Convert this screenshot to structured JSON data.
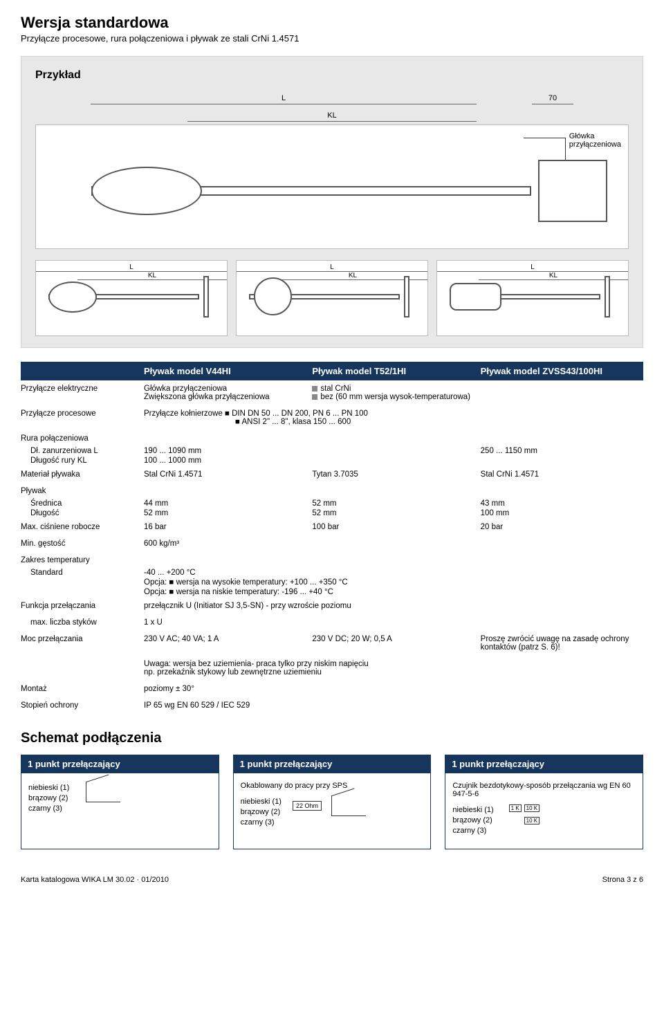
{
  "page": {
    "title": "Wersja standardowa",
    "subtitle": "Przyłącze procesowe, rura połączeniowa i pływak ze stali CrNi 1.4571",
    "footer_left": "Karta katalogowa WIKA LM 30.02 · 01/2010",
    "footer_right": "Strona 3 z 6",
    "schematic_heading": "Schemat podłączenia"
  },
  "diagram": {
    "example_label": "Przykład",
    "dim_L": "L",
    "dim_KL": "KL",
    "dim_70": "70",
    "callout": "Główka\nprzyłączeniowa"
  },
  "specs": {
    "header": {
      "blank": "",
      "c2": "Pływak model V44HI",
      "c3": "Pływak model T52/1HI",
      "c4": "Pływak model  ZVSS43/100HI"
    },
    "rows": [
      {
        "label": "Przyłącze elektryczne",
        "c2": "Główka przyłączeniowa",
        "c2b": "Zwiększona główka przyłączeniowa",
        "c3": "stal CrNi",
        "c3b": "bez (60 mm wersja wysok-temperaturowa)",
        "c4": "",
        "type": "twoLine"
      },
      {
        "label": "Przyłącze procesowe",
        "full": "Przyłącze kołnierzowe ■ DIN DN 50 ... DN 200, PN 6 ... PN 100",
        "full2": "■ ANSI 2\" ... 8\", klasa 150 ... 600",
        "type": "full"
      },
      {
        "label": "Rura połączeniowa",
        "sub": [
          {
            "l": "Dł. zanurzeniowa L",
            "c2": "190 ... 1090 mm",
            "c3": "",
            "c4": "250 ... 1150 mm"
          },
          {
            "l": "Długość rury KL",
            "c2": "100 ... 1000 mm",
            "c3": "",
            "c4": ""
          }
        ],
        "type": "group"
      },
      {
        "label": "Materiał pływaka",
        "c2": "Stal CrNi 1.4571",
        "c3": "Tytan 3.7035",
        "c4": "Stal CrNi 1.4571",
        "type": "three"
      },
      {
        "label": "Pływak",
        "sub": [
          {
            "l": "Średnica",
            "c2": "44 mm",
            "c3": "52 mm",
            "c4": "43 mm"
          },
          {
            "l": "Długość",
            "c2": "52 mm",
            "c3": "52 mm",
            "c4": "100 mm"
          }
        ],
        "type": "group2"
      },
      {
        "label": "Max. ciśniene robocze",
        "c2": "16 bar",
        "c3": "100 bar",
        "c4": "20 bar",
        "type": "three"
      },
      {
        "label": "Min. gęstość",
        "c2": "600 kg/m³",
        "type": "one"
      },
      {
        "label": "Zakres temperatury",
        "sub": [
          {
            "l": "Standard",
            "c2": "-40 ... +200 °C"
          },
          {
            "l": "",
            "c2": "Opcja:    ■ wersja na wysokie temperatury: +100 ... +350 °C"
          },
          {
            "l": "",
            "c2": "Opcja:    ■ wersja na niskie temperatury: -196 ... +40 °C"
          }
        ],
        "type": "groupFull"
      },
      {
        "label": "Funkcja przełączania",
        "c2": "przełącznik U (Initiator SJ 3,5-SN)  - przy wzroście poziomu",
        "type": "one"
      },
      {
        "label": "max. liczba styków",
        "c2": "1 x U",
        "type": "one",
        "indent": true
      },
      {
        "label": "Moc przełączania",
        "c2": "230 V AC;  40 VA; 1 A",
        "c3": "230 V DC; 20 W; 0,5 A",
        "c4": "Proszę zwrócić uwagę na zasadę ochrony kontaktów (patrz S. 6)!",
        "type": "three"
      },
      {
        "label": "",
        "c2": "Uwaga: wersja bez uziemienia- praca tylko przy niskim napięciu\nnp. przekaźnik stykowy lub zewnętrzne uziemieniu",
        "type": "note"
      },
      {
        "label": "Montaż",
        "c2": "poziomy ± 30°",
        "type": "one"
      },
      {
        "label": "Stopień ochrony",
        "c2": "IP 65  wg EN 60 529 / IEC 529",
        "type": "one"
      }
    ]
  },
  "schematic": {
    "boxes": [
      {
        "title": "1 punkt przełączający",
        "subtitle": "",
        "wires": [
          "niebieski (1)",
          "brązowy (2)",
          "czarny (3)"
        ],
        "extra": "switch"
      },
      {
        "title": "1 punkt przełączający",
        "subtitle": "Okablowany do pracy przy SPS",
        "wires": [
          "niebieski (1)",
          "brązowy (2)",
          "czarny (3)"
        ],
        "extra": "ohm",
        "ohm": "22 Ohm"
      },
      {
        "title": "1 punkt przełączający",
        "subtitle": "Czujnik bezdotykowy-sposób przełączania wg EN 60 947-5-6",
        "wires": [
          "niebieski (1)",
          "brązowy (2)",
          "czarny (3)"
        ],
        "extra": "res",
        "r1": "1 K",
        "r2": "10 K",
        "r3": "10 K"
      }
    ]
  }
}
